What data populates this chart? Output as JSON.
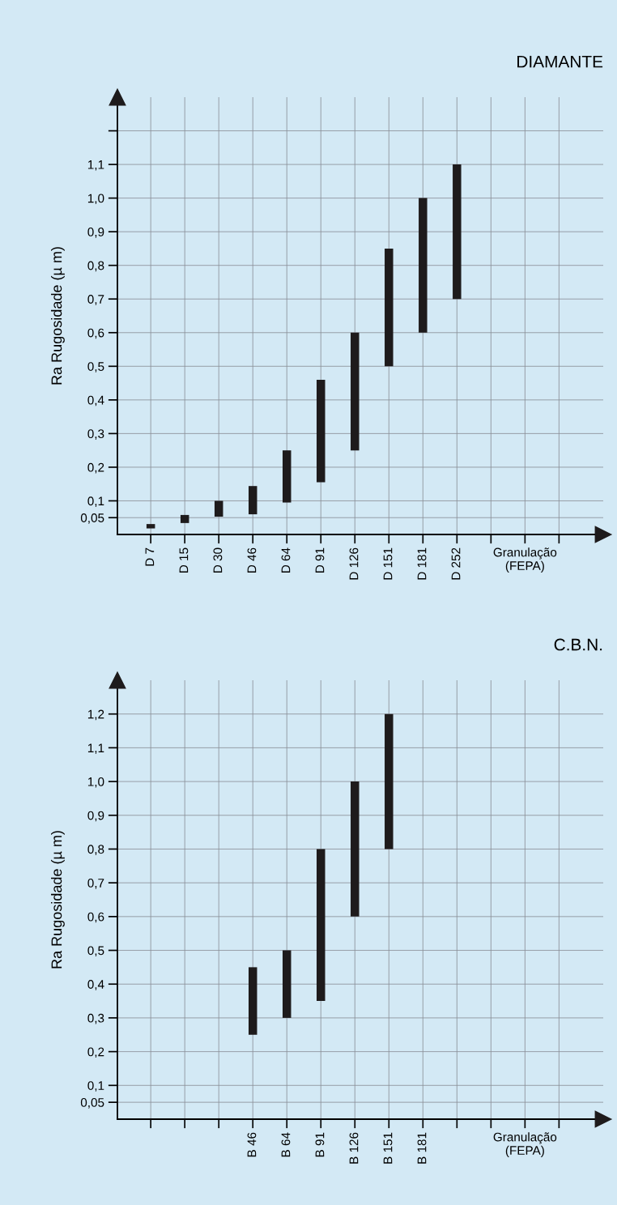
{
  "chart_data": [
    {
      "type": "bar",
      "title": "DIAMANTE",
      "ylabel": "Ra Rugosidade (µ m)",
      "xlabel": "Granulação\n(FEPA)",
      "categories": [
        "D 7",
        "D 15",
        "D 30",
        "D 46",
        "D 64",
        "D 91",
        "D 126",
        "D 151",
        "D 181",
        "D 252",
        null,
        null,
        null
      ],
      "base": [
        0.018,
        0.034,
        0.053,
        0.06,
        0.095,
        0.155,
        0.25,
        0.5,
        0.6,
        0.7,
        null,
        null,
        null
      ],
      "values": [
        0.013,
        0.024,
        0.047,
        0.084,
        0.155,
        0.305,
        0.35,
        0.35,
        0.4,
        0.4,
        null,
        null,
        null
      ],
      "color": "#1e1b1c",
      "ylim": [
        0,
        1.3
      ],
      "yticks": [
        {
          "value": 0.05,
          "label": "0,05"
        },
        {
          "value": 0.1,
          "label": "0,1"
        },
        {
          "value": 0.2,
          "label": "0,2"
        },
        {
          "value": 0.3,
          "label": "0,3"
        },
        {
          "value": 0.4,
          "label": "0,4"
        },
        {
          "value": 0.5,
          "label": "0,5"
        },
        {
          "value": 0.6,
          "label": "0,6"
        },
        {
          "value": 0.7,
          "label": "0,7"
        },
        {
          "value": 0.8,
          "label": "0,8"
        },
        {
          "value": 0.9,
          "label": "0,9"
        },
        {
          "value": 1.0,
          "label": "1,0"
        },
        {
          "value": 1.1,
          "label": "1,1"
        },
        {
          "value": 1.2,
          "label": null
        }
      ],
      "grid": true
    },
    {
      "type": "bar",
      "title": "C.B.N.",
      "ylabel": "Ra Rugosidade (µ m)",
      "xlabel": "Granulação\n(FEPA)",
      "categories": [
        null,
        null,
        null,
        "B 46",
        "B 64",
        "B 91",
        "B 126",
        "B 151",
        "B 181",
        null,
        null,
        null,
        null
      ],
      "base": [
        null,
        null,
        null,
        0.25,
        0.3,
        0.35,
        0.6,
        0.8,
        null,
        null,
        null,
        null,
        null
      ],
      "values": [
        null,
        null,
        null,
        0.2,
        0.2,
        0.45,
        0.4,
        0.4,
        null,
        null,
        null,
        null,
        null
      ],
      "color": "#1e1b1c",
      "ylim": [
        0,
        1.3
      ],
      "yticks": [
        {
          "value": 0.05,
          "label": "0,05"
        },
        {
          "value": 0.1,
          "label": "0,1"
        },
        {
          "value": 0.2,
          "label": "0,2"
        },
        {
          "value": 0.3,
          "label": "0,3"
        },
        {
          "value": 0.4,
          "label": "0,4"
        },
        {
          "value": 0.5,
          "label": "0,5"
        },
        {
          "value": 0.6,
          "label": "0,6"
        },
        {
          "value": 0.7,
          "label": "0,7"
        },
        {
          "value": 0.8,
          "label": "0,8"
        },
        {
          "value": 0.9,
          "label": "0,9"
        },
        {
          "value": 1.0,
          "label": "1,0"
        },
        {
          "value": 1.1,
          "label": "1,1"
        },
        {
          "value": 1.2,
          "label": "1,2"
        }
      ],
      "grid": true
    }
  ]
}
